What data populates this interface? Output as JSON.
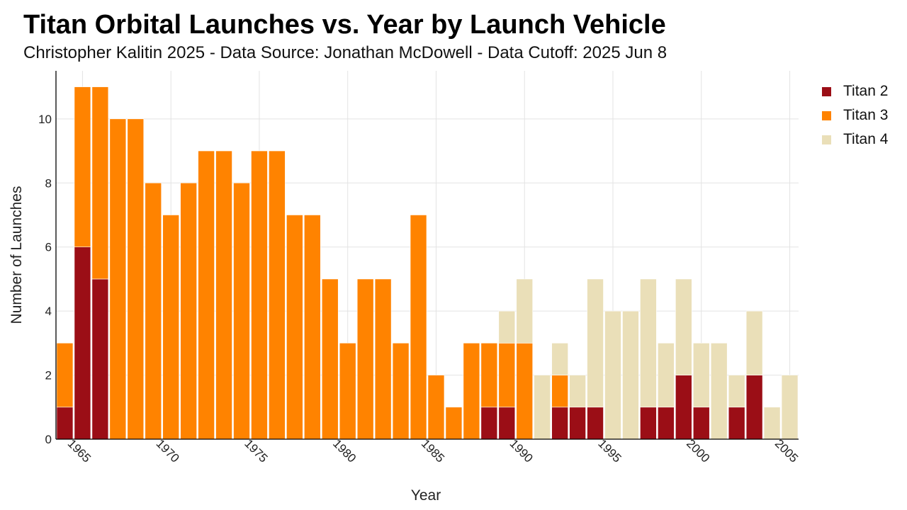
{
  "title": "Titan Orbital Launches vs. Year by Launch Vehicle",
  "subtitle": "Christopher Kalitin 2025 - Data Source: Jonathan McDowell - Data Cutoff: 2025 Jun 8",
  "chart_data": {
    "type": "bar",
    "stacked": true,
    "title": "Titan Orbital Launches vs. Year by Launch Vehicle",
    "subtitle": "Christopher Kalitin 2025 - Data Source: Jonathan McDowell - Data Cutoff: 2025 Jun 8",
    "xlabel": "Year",
    "ylabel": "Number of Launches",
    "xlim": [
      1963.5,
      2005.5
    ],
    "ylim": [
      0,
      11.5
    ],
    "xticks": [
      1965,
      1970,
      1975,
      1980,
      1985,
      1990,
      1995,
      2000,
      2005
    ],
    "yticks": [
      0,
      2,
      4,
      6,
      8,
      10
    ],
    "grid": true,
    "legend_position": "top-right",
    "categories": [
      1964,
      1965,
      1966,
      1967,
      1968,
      1969,
      1970,
      1971,
      1972,
      1973,
      1974,
      1975,
      1976,
      1977,
      1978,
      1979,
      1980,
      1981,
      1982,
      1983,
      1984,
      1985,
      1986,
      1987,
      1988,
      1989,
      1990,
      1991,
      1992,
      1993,
      1994,
      1995,
      1996,
      1997,
      1998,
      1999,
      2000,
      2001,
      2002,
      2003,
      2004,
      2005
    ],
    "series": [
      {
        "name": "Titan 2",
        "color": "#9b0e16",
        "values": [
          1,
          6,
          5,
          0,
          0,
          0,
          0,
          0,
          0,
          0,
          0,
          0,
          0,
          0,
          0,
          0,
          0,
          0,
          0,
          0,
          0,
          0,
          0,
          0,
          1,
          1,
          0,
          0,
          1,
          1,
          1,
          0,
          0,
          1,
          1,
          2,
          1,
          0,
          1,
          2,
          0,
          0
        ]
      },
      {
        "name": "Titan 3",
        "color": "#ff8300",
        "values": [
          2,
          5,
          6,
          10,
          10,
          8,
          7,
          8,
          9,
          9,
          8,
          9,
          9,
          7,
          7,
          5,
          3,
          5,
          5,
          3,
          7,
          2,
          1,
          3,
          2,
          2,
          3,
          0,
          1,
          0,
          0,
          0,
          0,
          0,
          0,
          0,
          0,
          0,
          0,
          0,
          0,
          0
        ]
      },
      {
        "name": "Titan 4",
        "color": "#eadfb8",
        "values": [
          0,
          0,
          0,
          0,
          0,
          0,
          0,
          0,
          0,
          0,
          0,
          0,
          0,
          0,
          0,
          0,
          0,
          0,
          0,
          0,
          0,
          0,
          0,
          0,
          0,
          1,
          2,
          2,
          1,
          1,
          4,
          4,
          4,
          4,
          2,
          3,
          2,
          3,
          1,
          2,
          1,
          2
        ]
      }
    ]
  }
}
